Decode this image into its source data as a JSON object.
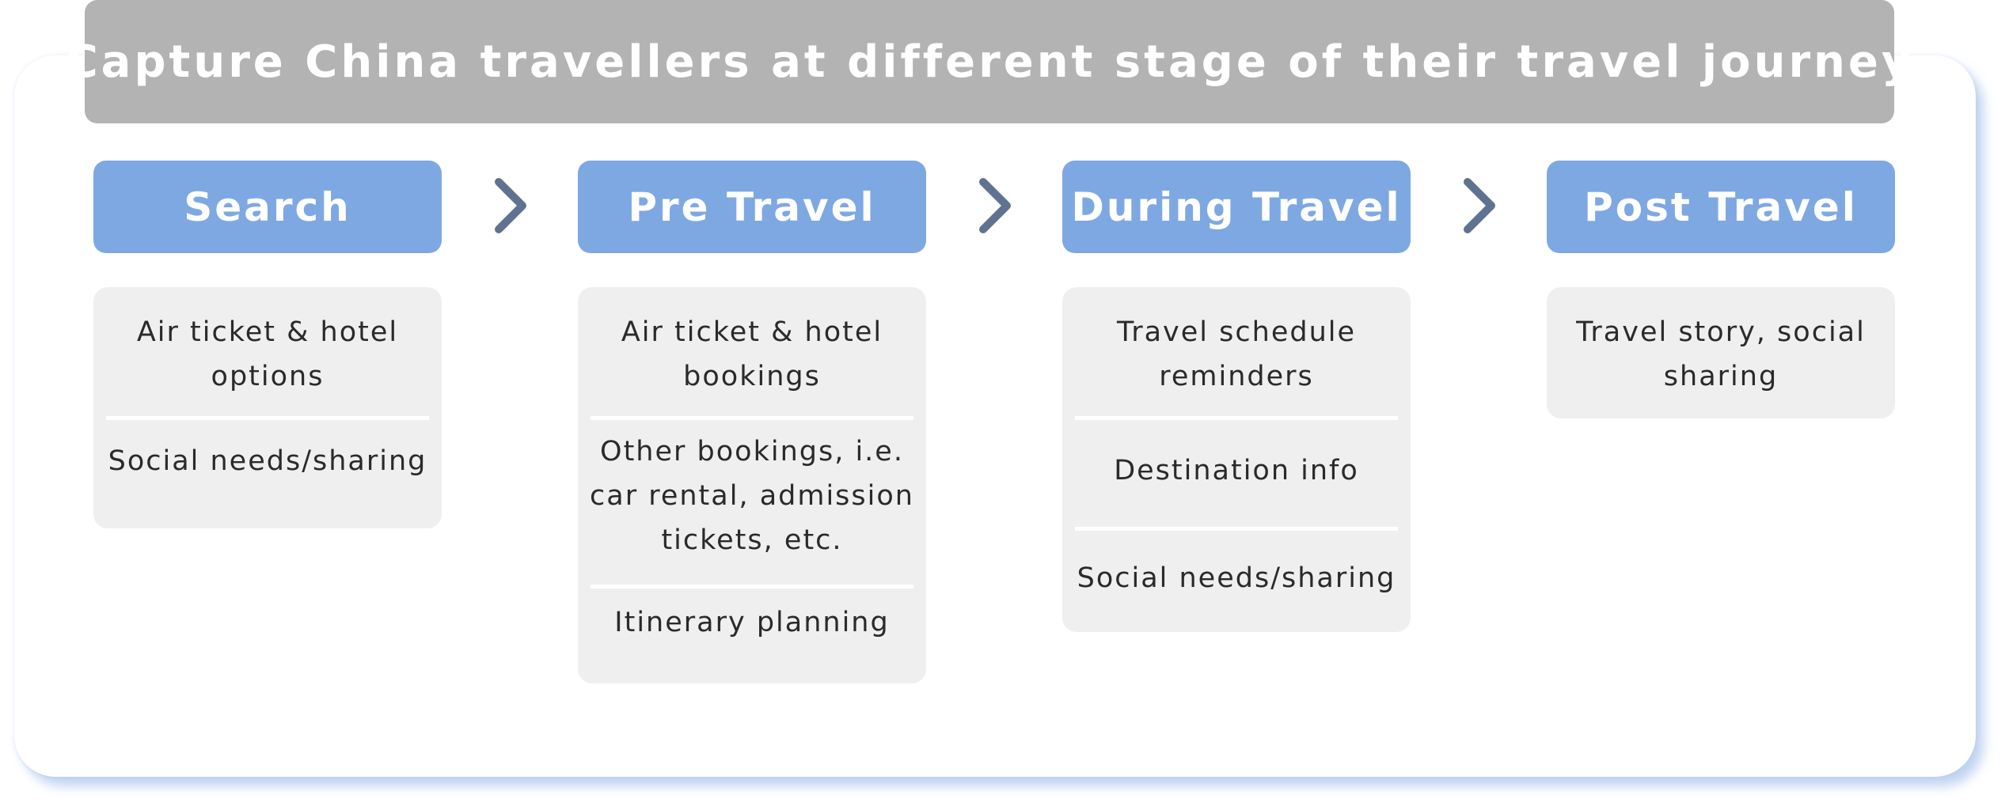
{
  "title": "Capture China travellers at different stage of their travel journey",
  "stages": [
    {
      "label": "Search",
      "items": [
        "Air ticket & hotel options",
        "Social needs/sharing"
      ]
    },
    {
      "label": "Pre Travel",
      "items": [
        "Air ticket & hotel bookings",
        "Other bookings, i.e. car rental, admission tickets, etc.",
        "Itinerary planning"
      ]
    },
    {
      "label": "During Travel",
      "items": [
        "Travel schedule reminders",
        "Destination info",
        "Social needs/sharing"
      ]
    },
    {
      "label": "Post Travel",
      "items": [
        "Travel story, social sharing"
      ]
    }
  ],
  "connector_icon": "chevron-right-icon",
  "colors": {
    "banner": "#b3b3b3",
    "stage_header": "#7ea8e2",
    "detail_box": "#efefef",
    "chevron": "#5f7390",
    "card_shadow": "#78a0e1"
  }
}
